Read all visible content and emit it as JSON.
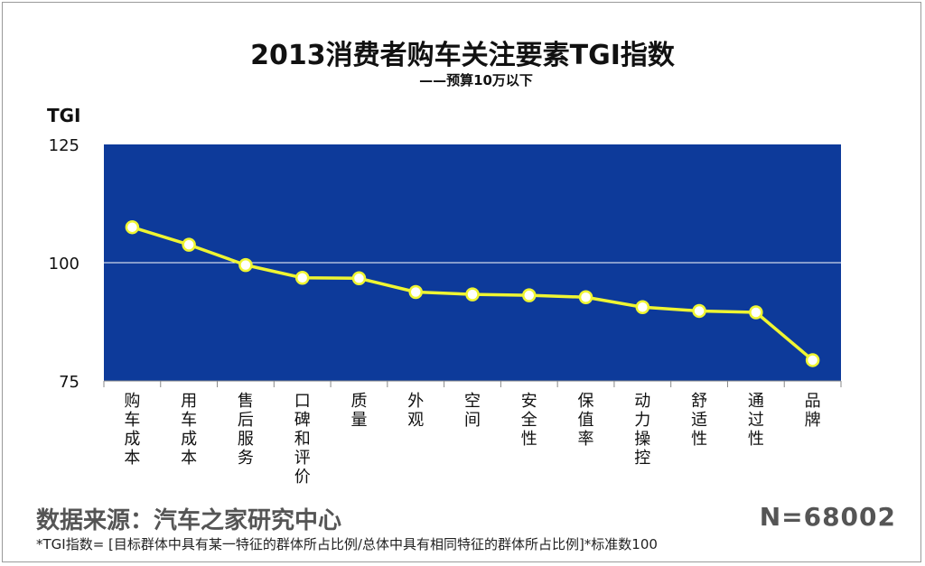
{
  "title": "2013消费者购车关注要素TGI指数",
  "subtitle": "——预算10万以下",
  "source": "数据来源：汽车之家研究中心",
  "sample": "N=68002",
  "footnote": "*TGI指数= [目标群体中具有某一特征的群体所占比例/总体中具有相同特征的群体所占比例]*标准数100",
  "colors": {
    "plot_bg": "#0D3A9A",
    "line": "#EFF532",
    "marker_fill": "#FFFFFF",
    "reference_line": "#FFFFFF"
  },
  "chart_data": {
    "type": "line",
    "title": "2013消费者购车关注要素TGI指数",
    "subtitle": "——预算10万以下",
    "ylabel": "TGI",
    "xlabel": "",
    "ylim": [
      75,
      125
    ],
    "yticks": [
      75,
      100,
      125
    ],
    "reference_line": 100,
    "grid": false,
    "legend": "none",
    "categories": [
      "购车成本",
      "用车成本",
      "售后服务",
      "口碑和评价",
      "质量",
      "外观",
      "空间",
      "安全性",
      "保值率",
      "动力操控",
      "舒适性",
      "通过性",
      "品牌"
    ],
    "series": [
      {
        "values": [
          107.5,
          103.8,
          99.5,
          96.8,
          96.7,
          93.8,
          93.3,
          93.1,
          92.7,
          90.6,
          89.8,
          89.5,
          79.4
        ]
      }
    ]
  }
}
